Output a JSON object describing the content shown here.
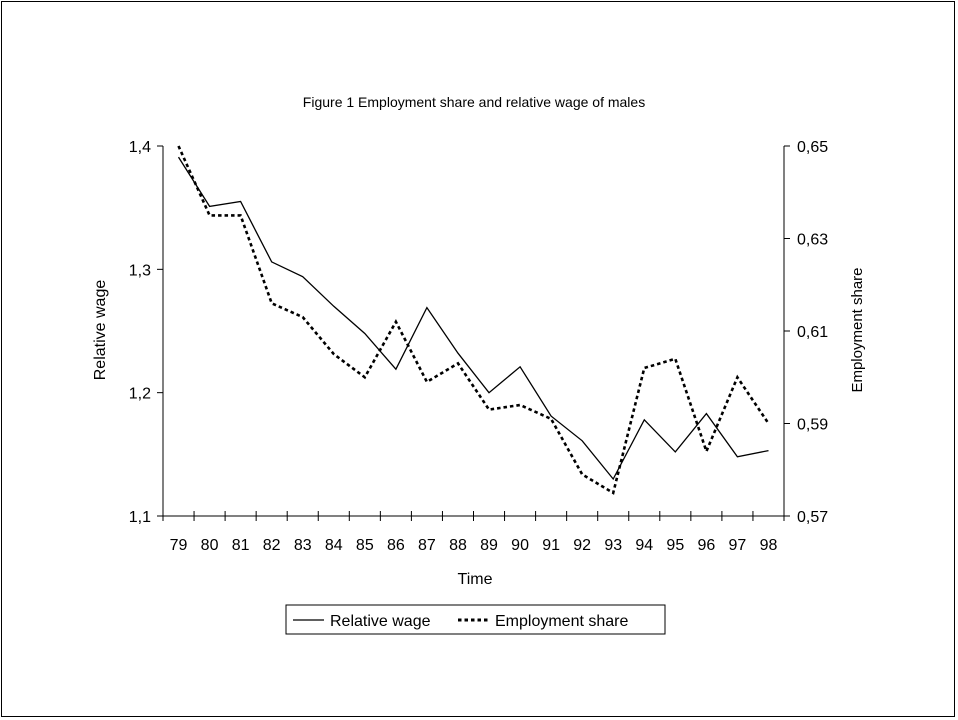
{
  "chart_data": {
    "type": "line",
    "title": "Figure 1 Employment share and relative wage of males",
    "xlabel": "Time",
    "ylabel_left": "Relative wage",
    "ylabel_right": "Employment share",
    "x": [
      "79",
      "80",
      "81",
      "82",
      "83",
      "84",
      "85",
      "86",
      "87",
      "88",
      "89",
      "90",
      "91",
      "92",
      "93",
      "94",
      "95",
      "96",
      "97",
      "98"
    ],
    "y_left_ticks": [
      "1,1",
      "1,2",
      "1,3",
      "1,4"
    ],
    "y_left_range": [
      1.1,
      1.4
    ],
    "y_right_ticks": [
      "0,57",
      "0,59",
      "0,61",
      "0,63",
      "0,65"
    ],
    "y_right_range": [
      0.57,
      0.65
    ],
    "legend_position": "bottom",
    "grid": false,
    "series": [
      {
        "name": "Relative wage",
        "axis": "left",
        "style": "solid",
        "color": "#000000",
        "values": [
          1.391,
          1.351,
          1.355,
          1.306,
          1.294,
          1.27,
          1.248,
          1.219,
          1.269,
          1.232,
          1.2,
          1.221,
          1.181,
          1.161,
          1.13,
          1.178,
          1.152,
          1.183,
          1.148,
          1.153
        ]
      },
      {
        "name": "Employment share",
        "axis": "right",
        "style": "dotted",
        "color": "#000000",
        "values": [
          0.65,
          0.635,
          0.635,
          0.616,
          0.613,
          0.605,
          0.6,
          0.612,
          0.599,
          0.603,
          0.593,
          0.594,
          0.591,
          0.579,
          0.575,
          0.602,
          0.604,
          0.584,
          0.6,
          0.59
        ]
      }
    ]
  }
}
